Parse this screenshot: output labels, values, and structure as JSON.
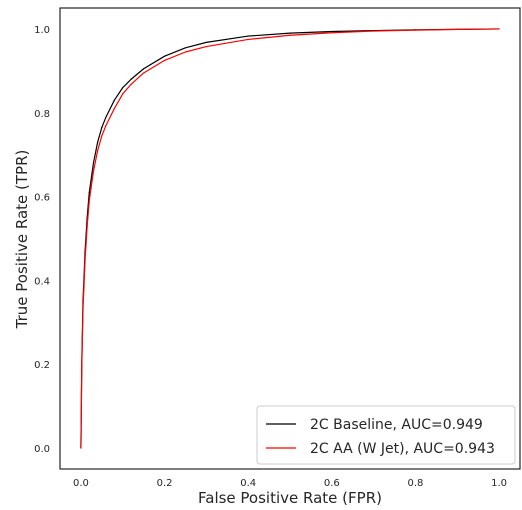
{
  "chart_data": {
    "type": "line",
    "title": "",
    "xlabel": "False Positive Rate (FPR)",
    "ylabel": "True Positive Rate (TPR)",
    "xlim": [
      -0.05,
      1.05
    ],
    "ylim": [
      -0.05,
      1.05
    ],
    "xticks": [
      "0.0",
      "0.2",
      "0.4",
      "0.6",
      "0.8",
      "1.0"
    ],
    "yticks": [
      "0.0",
      "0.2",
      "0.4",
      "0.6",
      "0.8",
      "1.0"
    ],
    "grid": false,
    "legend_position": "bottom-right",
    "series": [
      {
        "name": "2C Baseline, AUC=0.949",
        "color": "#000000",
        "x": [
          0.0,
          0.002,
          0.005,
          0.01,
          0.015,
          0.02,
          0.03,
          0.04,
          0.05,
          0.06,
          0.08,
          0.1,
          0.12,
          0.15,
          0.2,
          0.25,
          0.3,
          0.4,
          0.5,
          0.6,
          0.7,
          0.8,
          0.9,
          1.0
        ],
        "y": [
          0.0,
          0.2,
          0.35,
          0.47,
          0.55,
          0.61,
          0.68,
          0.73,
          0.765,
          0.79,
          0.83,
          0.86,
          0.88,
          0.905,
          0.935,
          0.955,
          0.968,
          0.983,
          0.99,
          0.994,
          0.996,
          0.998,
          0.999,
          1.0
        ]
      },
      {
        "name": "2C AA (W Jet), AUC=0.943",
        "color": "#ff0000",
        "x": [
          0.0,
          0.002,
          0.005,
          0.01,
          0.015,
          0.02,
          0.03,
          0.04,
          0.05,
          0.06,
          0.08,
          0.1,
          0.12,
          0.15,
          0.2,
          0.25,
          0.3,
          0.4,
          0.5,
          0.6,
          0.7,
          0.8,
          0.9,
          1.0
        ],
        "y": [
          0.0,
          0.19,
          0.33,
          0.45,
          0.53,
          0.59,
          0.66,
          0.71,
          0.745,
          0.77,
          0.81,
          0.845,
          0.868,
          0.895,
          0.925,
          0.945,
          0.958,
          0.975,
          0.985,
          0.991,
          0.995,
          0.997,
          0.999,
          1.0
        ]
      }
    ]
  }
}
